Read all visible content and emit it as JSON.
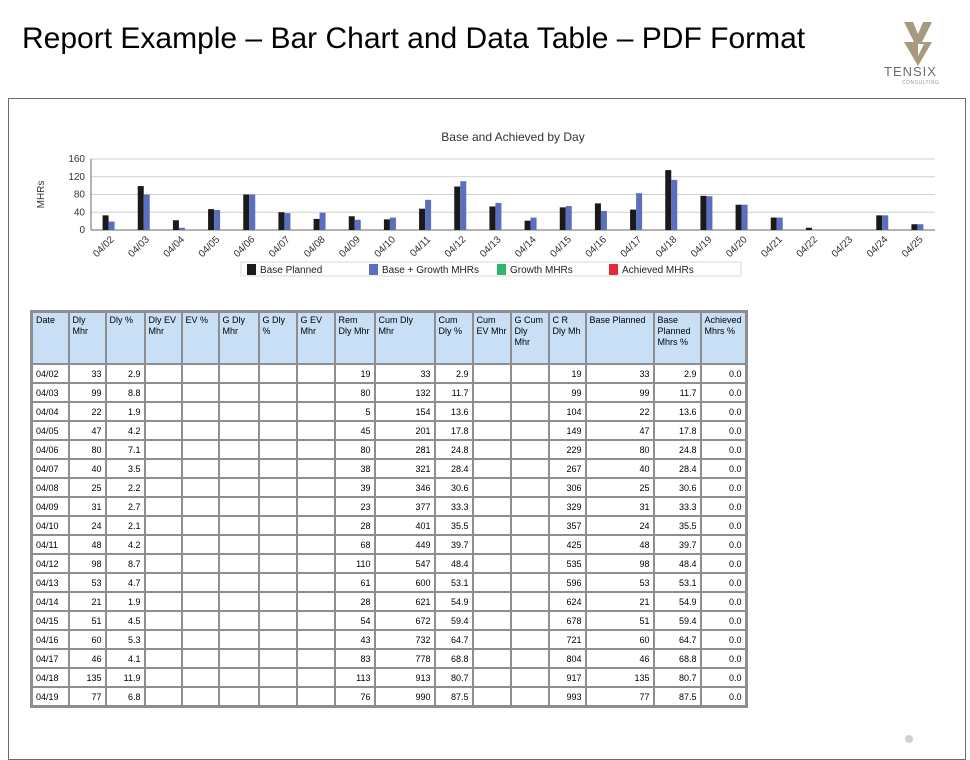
{
  "slide": {
    "title": "Report Example – Bar Chart and Data Table – PDF Format"
  },
  "logo": {
    "text": "TENSIX",
    "subtext": "CONSULTING",
    "mark_color": "#a89a80"
  },
  "chart_data": {
    "type": "bar",
    "title": "Base and Achieved by Day",
    "ylabel": "MHRs",
    "xlabel": "",
    "ylim": [
      0,
      160
    ],
    "yticks": [
      0,
      40,
      80,
      120,
      160
    ],
    "grid": true,
    "legend_position": "bottom",
    "categories": [
      "04/02",
      "04/03",
      "04/04",
      "04/05",
      "04/06",
      "04/07",
      "04/08",
      "04/09",
      "04/10",
      "04/11",
      "04/12",
      "04/13",
      "04/14",
      "04/15",
      "04/16",
      "04/17",
      "04/18",
      "04/19",
      "04/20",
      "04/21",
      "04/22",
      "04/23",
      "04/24",
      "04/25"
    ],
    "series": [
      {
        "name": "Base Planned",
        "color": "#1a1a1a",
        "values": [
          33,
          99,
          22,
          47,
          80,
          40,
          25,
          31,
          24,
          48,
          98,
          53,
          21,
          51,
          60,
          46,
          135,
          77,
          57,
          28,
          5,
          0,
          33,
          13
        ]
      },
      {
        "name": "Base + Growth MHRs",
        "color": "#5a6fc0",
        "values": [
          19,
          80,
          5,
          45,
          80,
          38,
          39,
          23,
          28,
          68,
          110,
          61,
          28,
          54,
          43,
          83,
          113,
          76,
          57,
          28,
          0,
          0,
          33,
          13
        ]
      },
      {
        "name": "Growth MHRs",
        "color": "#2fb56d",
        "values": [
          0,
          0,
          0,
          0,
          0,
          0,
          0,
          0,
          0,
          0,
          0,
          0,
          0,
          0,
          0,
          0,
          0,
          0,
          0,
          0,
          0,
          0,
          0,
          0
        ]
      },
      {
        "name": "Achieved MHRs",
        "color": "#e8283a",
        "values": [
          0,
          0,
          0,
          0,
          0,
          0,
          0,
          0,
          0,
          0,
          0,
          0,
          0,
          0,
          0,
          0,
          0,
          0,
          0,
          0,
          0,
          0,
          0,
          0
        ]
      }
    ]
  },
  "table": {
    "headers": [
      "Date",
      "Dly Mhr",
      "Dly %",
      "Dly EV Mhr",
      "EV %",
      "G Dly Mhr",
      "G Dly %",
      "G EV Mhr",
      "Rem Dly Mhr",
      "Cum Dly Mhr",
      "Cum Dly %",
      "Cum EV Mhr",
      "G Cum Dly Mhr",
      "C R Dly Mh",
      "Base Planned",
      "Base Planned Mhrs %",
      "Achieved Mhrs %"
    ],
    "rows": [
      [
        "04/02",
        "33",
        "2.9",
        "",
        "",
        "",
        "",
        "",
        "19",
        "33",
        "2.9",
        "",
        "",
        "19",
        "33",
        "2.9",
        "0.0"
      ],
      [
        "04/03",
        "99",
        "8.8",
        "",
        "",
        "",
        "",
        "",
        "80",
        "132",
        "11.7",
        "",
        "",
        "99",
        "99",
        "11.7",
        "0.0"
      ],
      [
        "04/04",
        "22",
        "1.9",
        "",
        "",
        "",
        "",
        "",
        "5",
        "154",
        "13.6",
        "",
        "",
        "104",
        "22",
        "13.6",
        "0.0"
      ],
      [
        "04/05",
        "47",
        "4.2",
        "",
        "",
        "",
        "",
        "",
        "45",
        "201",
        "17.8",
        "",
        "",
        "149",
        "47",
        "17.8",
        "0.0"
      ],
      [
        "04/06",
        "80",
        "7.1",
        "",
        "",
        "",
        "",
        "",
        "80",
        "281",
        "24.8",
        "",
        "",
        "229",
        "80",
        "24.8",
        "0.0"
      ],
      [
        "04/07",
        "40",
        "3.5",
        "",
        "",
        "",
        "",
        "",
        "38",
        "321",
        "28.4",
        "",
        "",
        "267",
        "40",
        "28.4",
        "0.0"
      ],
      [
        "04/08",
        "25",
        "2.2",
        "",
        "",
        "",
        "",
        "",
        "39",
        "346",
        "30.6",
        "",
        "",
        "306",
        "25",
        "30.6",
        "0.0"
      ],
      [
        "04/09",
        "31",
        "2.7",
        "",
        "",
        "",
        "",
        "",
        "23",
        "377",
        "33.3",
        "",
        "",
        "329",
        "31",
        "33.3",
        "0.0"
      ],
      [
        "04/10",
        "24",
        "2.1",
        "",
        "",
        "",
        "",
        "",
        "28",
        "401",
        "35.5",
        "",
        "",
        "357",
        "24",
        "35.5",
        "0.0"
      ],
      [
        "04/11",
        "48",
        "4.2",
        "",
        "",
        "",
        "",
        "",
        "68",
        "449",
        "39.7",
        "",
        "",
        "425",
        "48",
        "39.7",
        "0.0"
      ],
      [
        "04/12",
        "98",
        "8.7",
        "",
        "",
        "",
        "",
        "",
        "110",
        "547",
        "48.4",
        "",
        "",
        "535",
        "98",
        "48.4",
        "0.0"
      ],
      [
        "04/13",
        "53",
        "4.7",
        "",
        "",
        "",
        "",
        "",
        "61",
        "600",
        "53.1",
        "",
        "",
        "596",
        "53",
        "53.1",
        "0.0"
      ],
      [
        "04/14",
        "21",
        "1.9",
        "",
        "",
        "",
        "",
        "",
        "28",
        "621",
        "54.9",
        "",
        "",
        "624",
        "21",
        "54.9",
        "0.0"
      ],
      [
        "04/15",
        "51",
        "4.5",
        "",
        "",
        "",
        "",
        "",
        "54",
        "672",
        "59.4",
        "",
        "",
        "678",
        "51",
        "59.4",
        "0.0"
      ],
      [
        "04/16",
        "60",
        "5.3",
        "",
        "",
        "",
        "",
        "",
        "43",
        "732",
        "64.7",
        "",
        "",
        "721",
        "60",
        "64.7",
        "0.0"
      ],
      [
        "04/17",
        "46",
        "4.1",
        "",
        "",
        "",
        "",
        "",
        "83",
        "778",
        "68.8",
        "",
        "",
        "804",
        "46",
        "68.8",
        "0.0"
      ],
      [
        "04/18",
        "135",
        "11.9",
        "",
        "",
        "",
        "",
        "",
        "113",
        "913",
        "80.7",
        "",
        "",
        "917",
        "135",
        "80.7",
        "0.0"
      ],
      [
        "04/19",
        "77",
        "6.8",
        "",
        "",
        "",
        "",
        "",
        "76",
        "990",
        "87.5",
        "",
        "",
        "993",
        "77",
        "87.5",
        "0.0"
      ]
    ]
  }
}
